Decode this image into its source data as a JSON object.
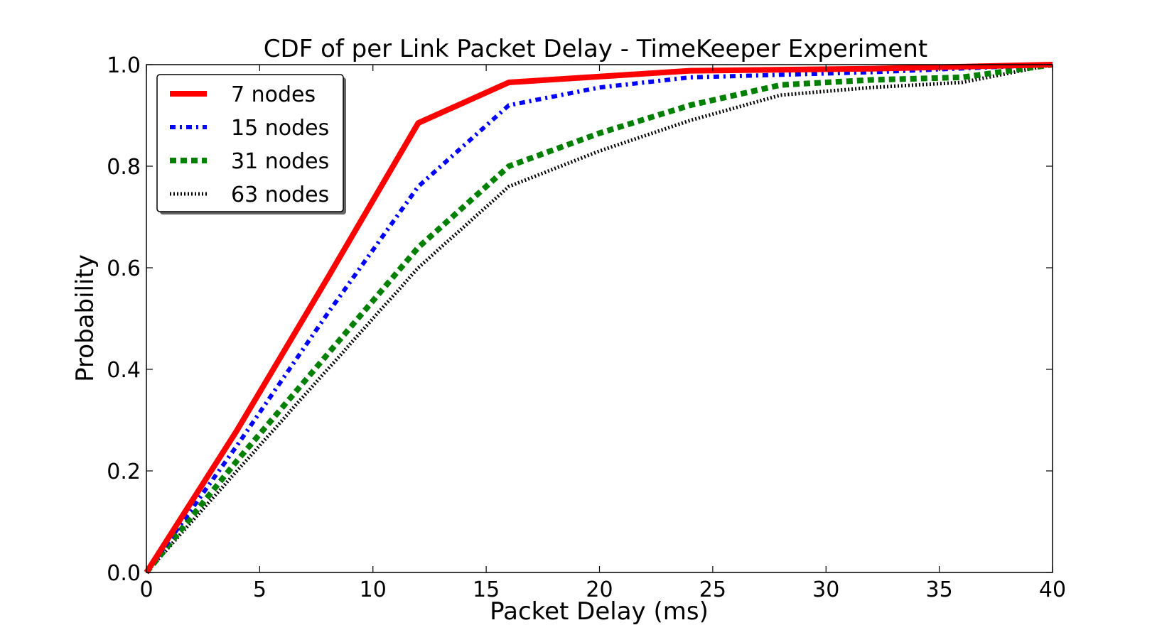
{
  "chart_data": {
    "type": "line",
    "title": "CDF of per Link Packet Delay - TimeKeeper Experiment",
    "xlabel": "Packet Delay (ms)",
    "ylabel": "Probability",
    "xlim": [
      0,
      40
    ],
    "ylim": [
      0,
      1
    ],
    "xticks": [
      0,
      5,
      10,
      15,
      20,
      25,
      30,
      35,
      40
    ],
    "xtick_labels": [
      "0",
      "5",
      "10",
      "15",
      "20",
      "25",
      "30",
      "35",
      "40"
    ],
    "yticks": [
      0,
      0.2,
      0.4,
      0.6,
      0.8,
      1.0
    ],
    "ytick_labels": [
      "0.0",
      "0.2",
      "0.4",
      "0.6",
      "0.8",
      "1.0"
    ],
    "grid": false,
    "legend_position": "top-left",
    "series": [
      {
        "name": "7 nodes",
        "color": "#ff0000",
        "style": "solid",
        "x": [
          0,
          4,
          8,
          12,
          16,
          24,
          32,
          40
        ],
        "y": [
          0.0,
          0.28,
          0.58,
          0.885,
          0.965,
          0.988,
          0.992,
          1.0
        ]
      },
      {
        "name": "15 nodes",
        "color": "#0000ff",
        "style": "dashdot",
        "x": [
          0,
          4,
          8,
          12,
          16,
          20,
          24,
          32,
          40
        ],
        "y": [
          0.0,
          0.25,
          0.51,
          0.76,
          0.92,
          0.955,
          0.975,
          0.985,
          1.0
        ]
      },
      {
        "name": "31 nodes",
        "color": "#008000",
        "style": "dashed",
        "x": [
          0,
          4,
          8,
          12,
          16,
          20,
          24,
          28,
          32,
          36,
          40
        ],
        "y": [
          0.0,
          0.22,
          0.43,
          0.64,
          0.8,
          0.865,
          0.92,
          0.96,
          0.97,
          0.975,
          1.0
        ]
      },
      {
        "name": "63 nodes",
        "color": "#000000",
        "style": "dotted",
        "x": [
          0,
          4,
          8,
          12,
          16,
          20,
          24,
          28,
          32,
          36,
          40
        ],
        "y": [
          0.0,
          0.2,
          0.4,
          0.6,
          0.76,
          0.83,
          0.89,
          0.94,
          0.955,
          0.965,
          1.0
        ]
      }
    ]
  }
}
